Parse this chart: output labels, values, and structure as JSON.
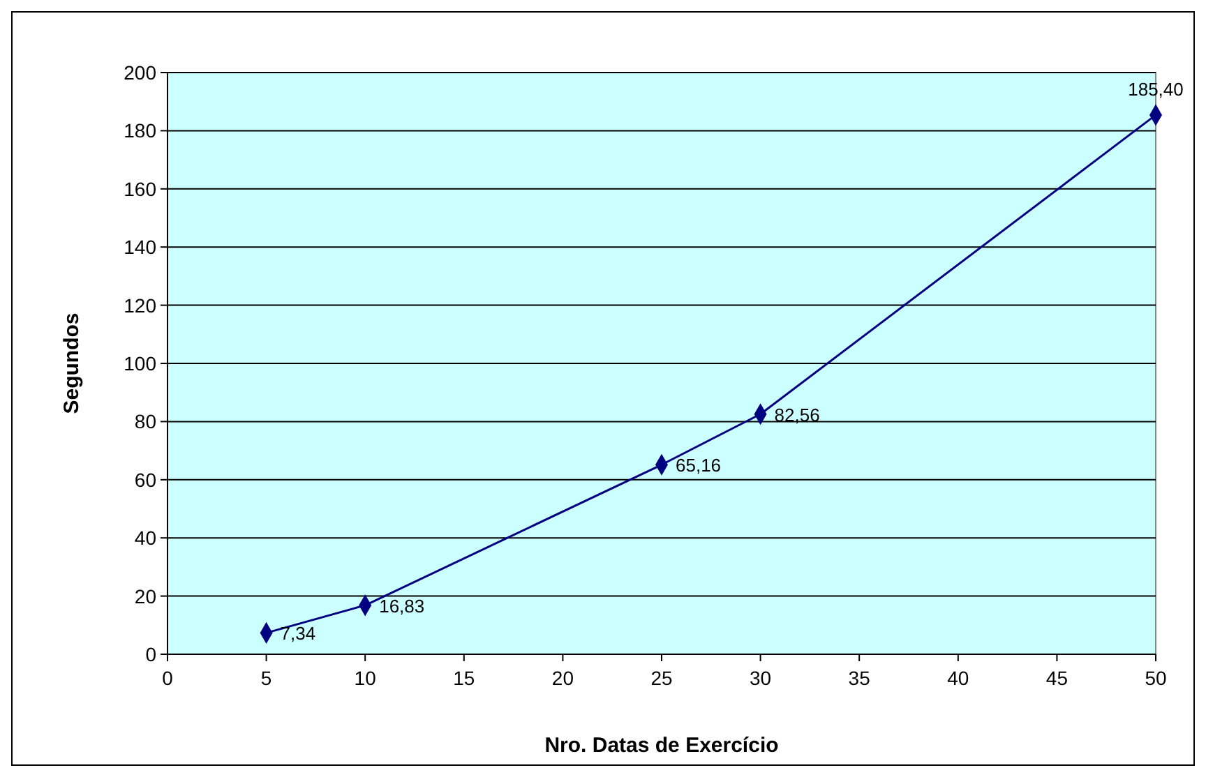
{
  "chart_data": {
    "type": "line",
    "xlabel": "Nro. Datas de Exercício",
    "ylabel": "Segundos",
    "x": [
      5,
      10,
      25,
      30,
      50
    ],
    "series": [
      {
        "color": "#000080",
        "values": [
          7.34,
          16.83,
          65.16,
          82.56,
          185.4
        ],
        "value_labels": [
          "7,34",
          "16,83",
          "65,16",
          "82,56",
          "185,40"
        ]
      }
    ],
    "xlim": [
      0,
      50
    ],
    "xticks": [
      0,
      5,
      10,
      15,
      20,
      25,
      30,
      35,
      40,
      45,
      50
    ],
    "ylim": [
      0,
      200
    ],
    "yticks": [
      0,
      20,
      40,
      60,
      80,
      100,
      120,
      140,
      160,
      180,
      200
    ],
    "grid": "y",
    "marker": "diamond",
    "line_style": "solid"
  }
}
